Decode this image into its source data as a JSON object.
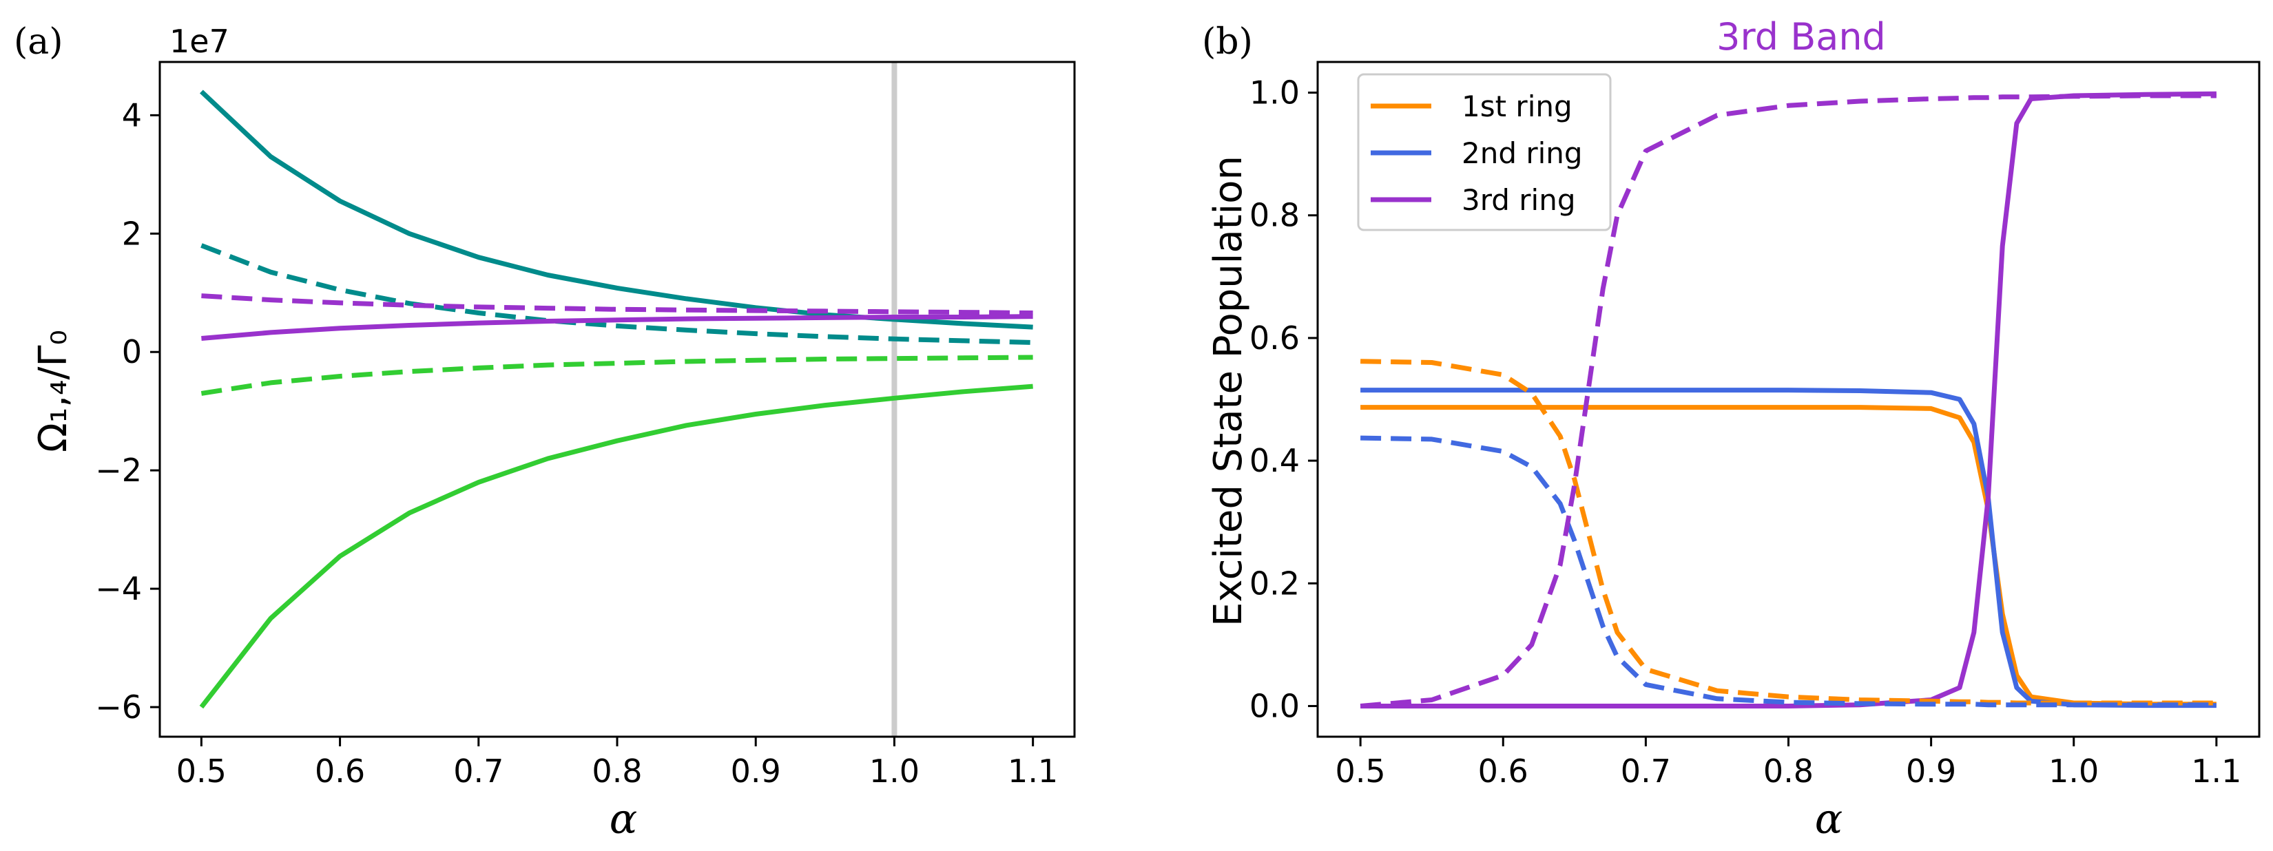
{
  "chart_data": [
    {
      "type": "line",
      "panel_label": "(a)",
      "offset_text": "1e7",
      "xlabel": "α",
      "ylabel": "Ω₁,₄/Γ₀",
      "xlim": [
        0.47,
        1.13
      ],
      "ylim": [
        -6.5,
        4.9
      ],
      "xticks": [
        "0.5",
        "0.6",
        "0.7",
        "0.8",
        "0.9",
        "1.0",
        "1.1"
      ],
      "yticks": [
        "−6",
        "−4",
        "−2",
        "0",
        "2",
        "4"
      ],
      "vline": {
        "x": 1.0,
        "color": "#cccccc"
      },
      "x": [
        0.5,
        0.55,
        0.6,
        0.65,
        0.7,
        0.75,
        0.8,
        0.85,
        0.9,
        0.95,
        1.0,
        1.05,
        1.1
      ],
      "series": [
        {
          "name": "teal-solid",
          "color": "#008b8b",
          "style": "solid",
          "values": [
            4.4,
            3.3,
            2.55,
            2.0,
            1.6,
            1.3,
            1.08,
            0.9,
            0.75,
            0.63,
            0.55,
            0.48,
            0.42
          ]
        },
        {
          "name": "teal-dashed",
          "color": "#008b8b",
          "style": "dashed",
          "values": [
            1.8,
            1.35,
            1.05,
            0.82,
            0.66,
            0.53,
            0.44,
            0.37,
            0.31,
            0.26,
            0.22,
            0.19,
            0.16
          ]
        },
        {
          "name": "purple-dashed",
          "color": "#9932cc",
          "style": "dashed",
          "values": [
            0.95,
            0.88,
            0.83,
            0.79,
            0.76,
            0.74,
            0.72,
            0.71,
            0.7,
            0.69,
            0.68,
            0.67,
            0.66
          ]
        },
        {
          "name": "purple-solid",
          "color": "#9932cc",
          "style": "solid",
          "values": [
            0.23,
            0.33,
            0.4,
            0.45,
            0.49,
            0.52,
            0.54,
            0.56,
            0.57,
            0.58,
            0.59,
            0.59,
            0.6
          ]
        },
        {
          "name": "green-dashed",
          "color": "#32cd32",
          "style": "dashed",
          "values": [
            -0.7,
            -0.52,
            -0.41,
            -0.33,
            -0.27,
            -0.22,
            -0.19,
            -0.16,
            -0.14,
            -0.12,
            -0.11,
            -0.1,
            -0.09
          ]
        },
        {
          "name": "green-solid",
          "color": "#32cd32",
          "style": "solid",
          "values": [
            -6.0,
            -4.5,
            -3.45,
            -2.72,
            -2.2,
            -1.8,
            -1.5,
            -1.24,
            -1.05,
            -0.9,
            -0.78,
            -0.67,
            -0.58
          ]
        }
      ]
    },
    {
      "type": "line",
      "panel_label": "(b)",
      "title": "3rd Band",
      "title_color": "#9932cc",
      "xlabel": "α",
      "ylabel": "Excited State Population",
      "xlim": [
        0.47,
        1.13
      ],
      "ylim": [
        -0.05,
        1.05
      ],
      "xticks": [
        "0.5",
        "0.6",
        "0.7",
        "0.8",
        "0.9",
        "1.0",
        "1.1"
      ],
      "yticks": [
        "0.0",
        "0.2",
        "0.4",
        "0.6",
        "0.8",
        "1.0"
      ],
      "legend": [
        {
          "label": "1st ring",
          "color": "#ff8c00"
        },
        {
          "label": "2nd ring",
          "color": "#4169e1"
        },
        {
          "label": "3rd ring",
          "color": "#9932cc"
        }
      ],
      "x": [
        0.5,
        0.55,
        0.6,
        0.62,
        0.64,
        0.65,
        0.66,
        0.67,
        0.68,
        0.7,
        0.75,
        0.8,
        0.85,
        0.9,
        0.92,
        0.93,
        0.94,
        0.95,
        0.96,
        0.97,
        1.0,
        1.05,
        1.1
      ],
      "series": [
        {
          "name": "1st ring solid",
          "color": "#ff8c00",
          "style": "solid",
          "values": [
            0.487,
            0.487,
            0.487,
            0.487,
            0.487,
            0.487,
            0.487,
            0.487,
            0.487,
            0.487,
            0.487,
            0.487,
            0.487,
            0.485,
            0.47,
            0.43,
            0.32,
            0.15,
            0.05,
            0.015,
            0.005,
            0.003,
            0.003
          ]
        },
        {
          "name": "2nd ring solid",
          "color": "#4169e1",
          "style": "solid",
          "values": [
            0.515,
            0.515,
            0.515,
            0.515,
            0.515,
            0.515,
            0.515,
            0.515,
            0.515,
            0.515,
            0.515,
            0.515,
            0.514,
            0.511,
            0.5,
            0.46,
            0.34,
            0.12,
            0.03,
            0.008,
            0.002,
            0.001,
            0.001
          ]
        },
        {
          "name": "3rd ring solid",
          "color": "#9932cc",
          "style": "solid",
          "values": [
            0.0,
            0.0,
            0.0,
            0.0,
            0.0,
            0.0,
            0.0,
            0.0,
            0.0,
            0.0,
            0.0,
            0.0,
            0.002,
            0.01,
            0.03,
            0.12,
            0.34,
            0.75,
            0.95,
            0.99,
            0.995,
            0.997,
            0.998
          ]
        },
        {
          "name": "1st ring dashed",
          "color": "#ff8c00",
          "style": "dashed",
          "values": [
            0.562,
            0.56,
            0.54,
            0.51,
            0.44,
            0.37,
            0.28,
            0.19,
            0.12,
            0.06,
            0.025,
            0.015,
            0.01,
            0.008,
            0.007,
            0.007,
            0.006,
            0.006,
            0.005,
            0.005,
            0.005,
            0.005,
            0.005
          ]
        },
        {
          "name": "2nd ring dashed",
          "color": "#4169e1",
          "style": "dashed",
          "values": [
            0.437,
            0.435,
            0.415,
            0.39,
            0.33,
            0.27,
            0.2,
            0.13,
            0.08,
            0.035,
            0.012,
            0.006,
            0.004,
            0.003,
            0.003,
            0.003,
            0.002,
            0.002,
            0.002,
            0.002,
            0.002,
            0.002,
            0.002
          ]
        },
        {
          "name": "3rd ring dashed",
          "color": "#9932cc",
          "style": "dashed",
          "values": [
            0.0,
            0.01,
            0.05,
            0.1,
            0.23,
            0.36,
            0.52,
            0.68,
            0.8,
            0.905,
            0.963,
            0.979,
            0.986,
            0.99,
            0.991,
            0.992,
            0.992,
            0.993,
            0.993,
            0.993,
            0.994,
            0.995,
            0.995
          ]
        }
      ]
    }
  ]
}
